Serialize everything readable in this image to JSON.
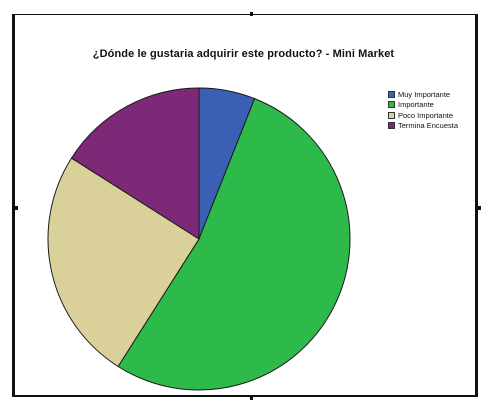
{
  "chart_data": {
    "type": "pie",
    "title": "¿Dónde le  gustaria adquirir este producto? - Mini Market",
    "categories": [
      "Muy Importante",
      "Importante",
      "Poco Importante",
      "Termina Encuesta"
    ],
    "values": [
      6,
      53,
      25,
      16
    ],
    "colors": [
      "#3a5fb3",
      "#2dba4b",
      "#d9d09a",
      "#7e2878"
    ],
    "legend": "top-right",
    "start_angle_deg": 0,
    "direction": "clockwise"
  }
}
